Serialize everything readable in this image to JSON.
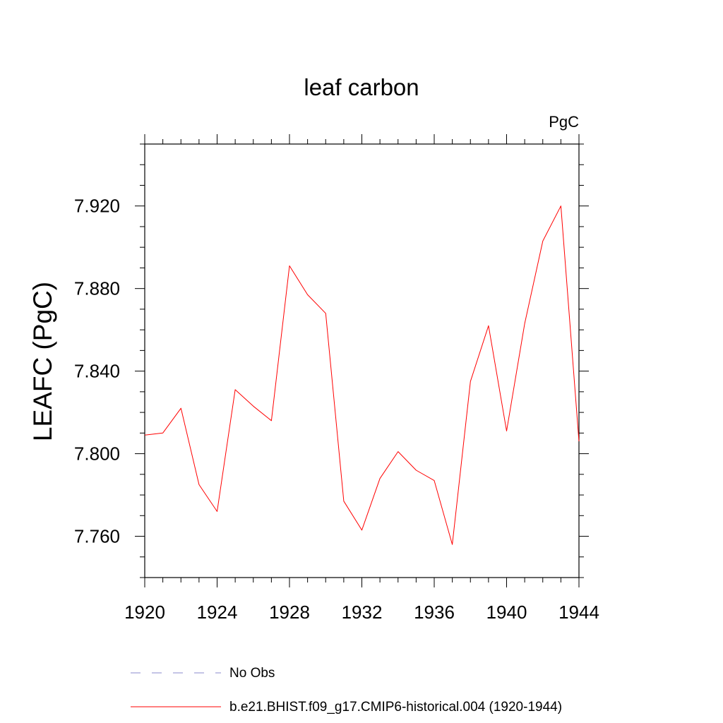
{
  "chart_data": {
    "type": "line",
    "title": "leaf carbon",
    "units": "PgC",
    "ylabel": "LEAFC  (PgC)",
    "xlabel": "",
    "xlim": [
      1920,
      1944
    ],
    "ylim": [
      7.74,
      7.95
    ],
    "grid": false,
    "x_ticks": [
      "1920",
      "1924",
      "1928",
      "1932",
      "1936",
      "1940",
      "1944"
    ],
    "y_ticks": [
      "7.760",
      "7.800",
      "7.840",
      "7.880",
      "7.920"
    ],
    "x": [
      1920,
      1921,
      1922,
      1923,
      1924,
      1925,
      1926,
      1927,
      1928,
      1929,
      1930,
      1931,
      1932,
      1933,
      1934,
      1935,
      1936,
      1937,
      1938,
      1939,
      1940,
      1941,
      1942,
      1943,
      1944
    ],
    "series": [
      {
        "name": "b.e21.BHIST.f09_g17.CMIP6-historical.004 (1920-1944)",
        "color": "#ff0000",
        "values": [
          7.809,
          7.81,
          7.822,
          7.785,
          7.772,
          7.831,
          7.823,
          7.816,
          7.891,
          7.877,
          7.868,
          7.777,
          7.763,
          7.788,
          7.801,
          7.792,
          7.787,
          7.756,
          7.835,
          7.862,
          7.811,
          7.863,
          7.903,
          7.92,
          7.806
        ]
      }
    ],
    "legend": {
      "position": "bottom-center",
      "items": [
        {
          "label": "No Obs",
          "style": "dashed",
          "color": "#8888cc"
        },
        {
          "label": "b.e21.BHIST.f09_g17.CMIP6-historical.004 (1920-1944)",
          "style": "solid",
          "color": "#ff0000"
        }
      ]
    }
  }
}
